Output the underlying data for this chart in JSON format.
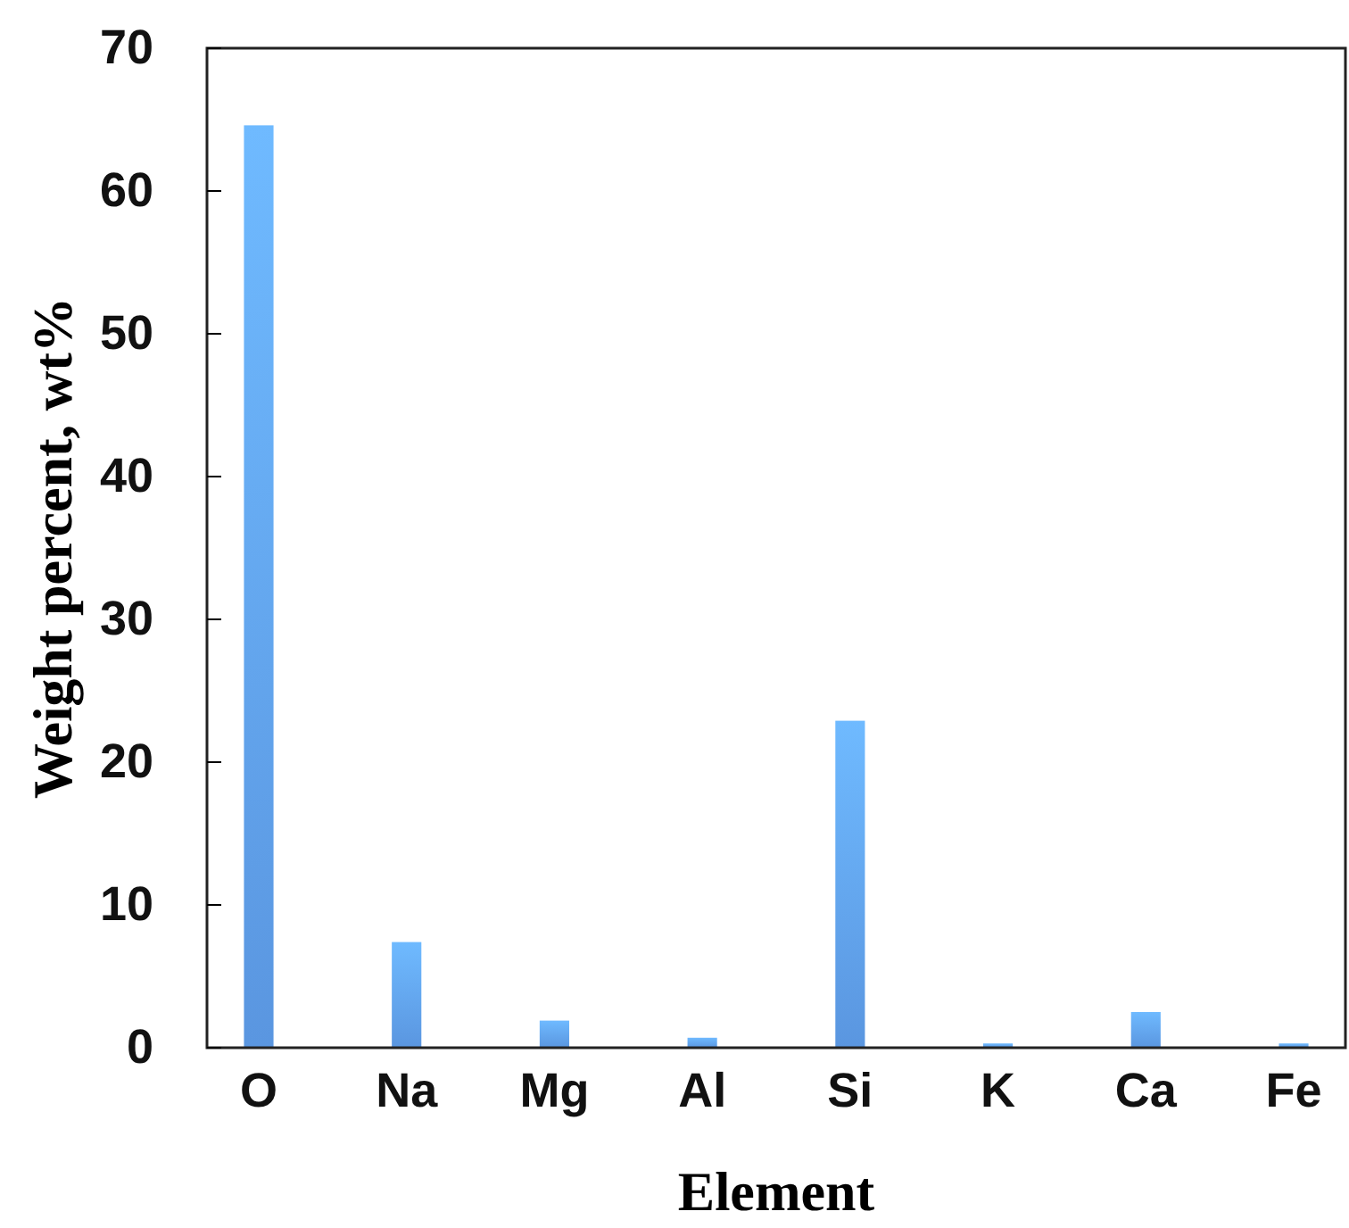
{
  "chart_data": {
    "type": "bar",
    "xlabel": "Element",
    "ylabel": "Weight percent, wt%",
    "categories": [
      "O",
      "Na",
      "Mg",
      "Al",
      "Si",
      "K",
      "Ca",
      "Fe"
    ],
    "values": [
      64.6,
      7.4,
      1.9,
      0.7,
      22.9,
      0.3,
      2.5,
      0.3
    ],
    "color": "#5a96e0",
    "ylim": [
      0,
      70
    ],
    "yticks": [
      0,
      10,
      20,
      30,
      40,
      50,
      60,
      70
    ],
    "grid": false
  }
}
